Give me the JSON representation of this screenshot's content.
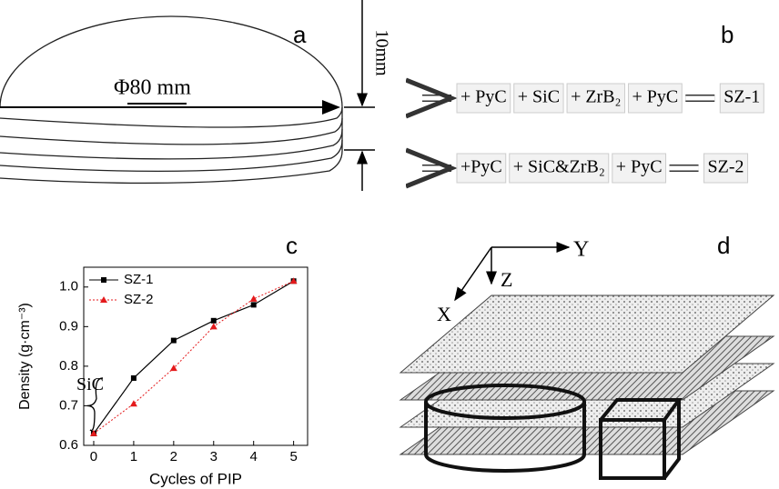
{
  "panel_labels": [
    "a",
    "b",
    "c",
    "d"
  ],
  "panel_a": {
    "diameter": "Φ80 mm",
    "thickness": "10mm"
  },
  "panel_b": {
    "rows": [
      [
        "+ PyC",
        "+ SiC",
        "+ ZrB₂",
        "+ PyC",
        "SZ-1"
      ],
      [
        "+PyC",
        "+ SiC&ZrB₂",
        "+ PyC",
        "SZ-2"
      ]
    ]
  },
  "panel_d": {
    "axes": [
      "Y",
      "Z",
      "X"
    ]
  },
  "chart_data": {
    "type": "line",
    "xlabel": "Cycles of PIP",
    "ylabel": "Density (g·cm⁻³)",
    "x": [
      0,
      1,
      2,
      3,
      4,
      5
    ],
    "series": [
      {
        "name": "SZ-1",
        "color": "#000000",
        "values": [
          0.63,
          0.77,
          0.865,
          0.915,
          0.955,
          1.015
        ]
      },
      {
        "name": "SZ-2",
        "color": "#e41a1c",
        "values": [
          0.63,
          0.705,
          0.795,
          0.9,
          0.97,
          1.015
        ]
      }
    ],
    "xlim": [
      -0.25,
      5.35
    ],
    "xticks": [
      0,
      1,
      2,
      3,
      4,
      5
    ],
    "ylim": [
      0.6,
      1.05
    ],
    "yticks": [
      0.6,
      0.7,
      0.8,
      0.9,
      {
        "value": 1,
        "label": "1.0"
      }
    ],
    "annotation": "SiC",
    "legend": "upper-left"
  }
}
